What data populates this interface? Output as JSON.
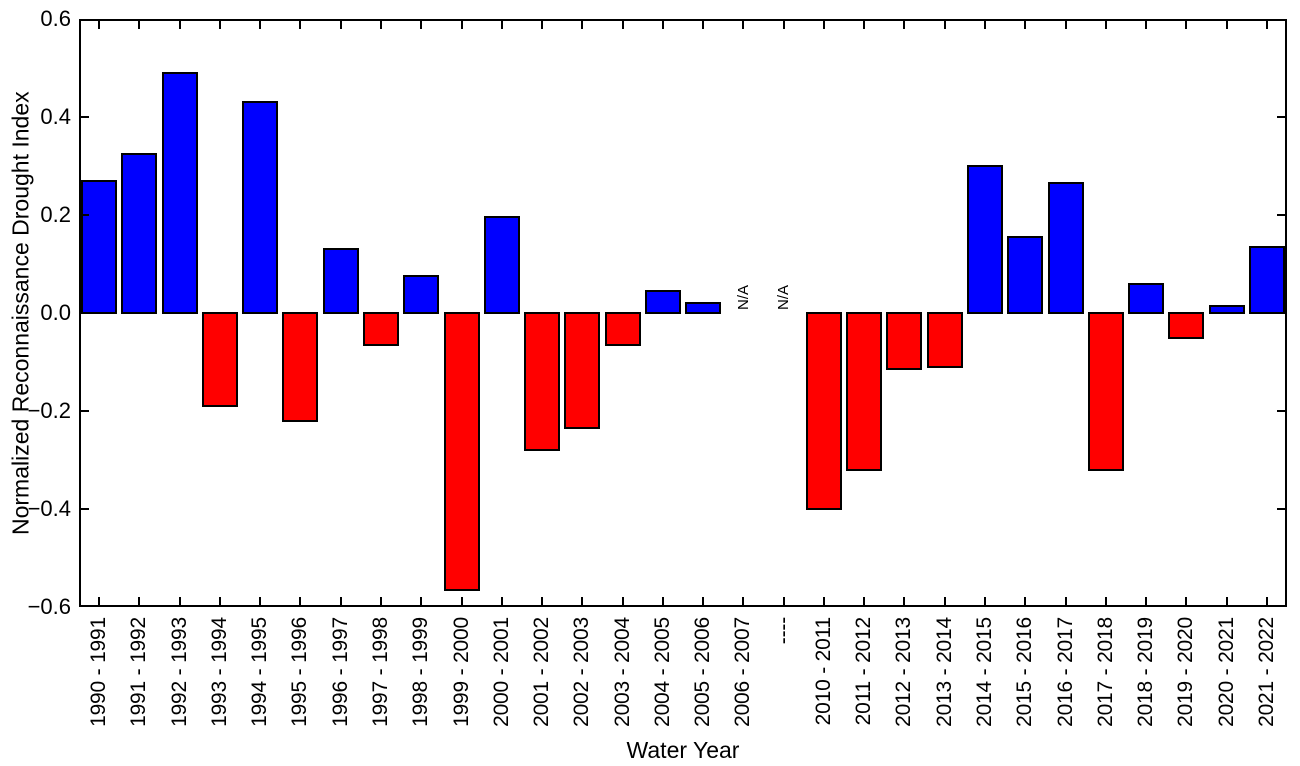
{
  "figure": {
    "background": "#ffffff",
    "text_color": "#000000"
  },
  "chart_data": {
    "type": "bar",
    "title": "",
    "xlabel": "Water Year",
    "ylabel": "Normalized Reconnaissance Drought Index",
    "ylim": [
      -0.6,
      0.6
    ],
    "yticks": [
      0.6,
      0.4,
      0.2,
      0.0,
      -0.2,
      -0.4,
      -0.6
    ],
    "ytick_labels": [
      "0.6",
      "0.4",
      "0.2",
      "0.0",
      "−0.2",
      "−0.4",
      "−0.6"
    ],
    "grid": false,
    "legend": "none",
    "colors": {
      "positive": "#0000ff",
      "negative": "#ff0000",
      "edge": "#000000"
    },
    "na_label": "N/A",
    "na_indices": [
      16,
      17
    ],
    "categories": [
      "1990 - 1991",
      "1991 - 1992",
      "1992 - 1993",
      "1993 - 1994",
      "1994 - 1995",
      "1995 - 1996",
      "1996 - 1997",
      "1997 - 1998",
      "1998 - 1999",
      "1999 - 2000",
      "2000 - 2001",
      "2001 - 2002",
      "2002 - 2003",
      "2003 - 2004",
      "2004 - 2005",
      "2005 - 2006",
      "2006 - 2007",
      "----",
      "2010 - 2011",
      "2011 - 2012",
      "2012 - 2013",
      "2013 - 2014",
      "2014 - 2015",
      "2015 - 2016",
      "2016 - 2017",
      "2017 - 2018",
      "2018 - 2019",
      "2019 - 2020",
      "2020 - 2021",
      "2021 - 2022"
    ],
    "values": [
      0.27,
      0.325,
      0.49,
      -0.19,
      0.43,
      -0.22,
      0.13,
      -0.065,
      0.075,
      -0.565,
      0.195,
      -0.28,
      -0.235,
      -0.065,
      0.045,
      0.02,
      null,
      null,
      -0.4,
      -0.32,
      -0.115,
      -0.11,
      0.3,
      0.155,
      0.265,
      -0.32,
      0.06,
      -0.05,
      0.015,
      0.135
    ]
  }
}
